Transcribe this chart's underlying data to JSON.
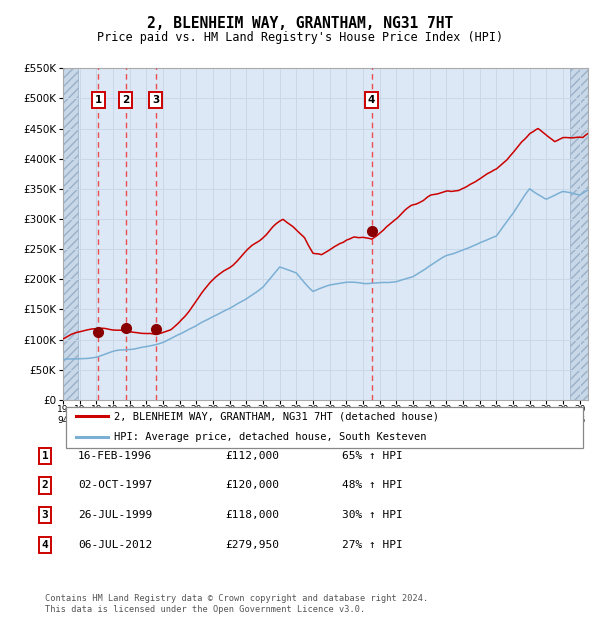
{
  "title": "2, BLENHEIM WAY, GRANTHAM, NG31 7HT",
  "subtitle": "Price paid vs. HM Land Registry's House Price Index (HPI)",
  "sales": [
    {
      "date_num": 1996.12,
      "price": 112000,
      "label": "1"
    },
    {
      "date_num": 1997.75,
      "price": 120000,
      "label": "2"
    },
    {
      "date_num": 1999.57,
      "price": 118000,
      "label": "3"
    },
    {
      "date_num": 2012.51,
      "price": 279950,
      "label": "4"
    }
  ],
  "legend_line1": "2, BLENHEIM WAY, GRANTHAM, NG31 7HT (detached house)",
  "legend_line2": "HPI: Average price, detached house, South Kesteven",
  "table_rows": [
    {
      "num": "1",
      "date": "16-FEB-1996",
      "price": "£112,000",
      "hpi": "65% ↑ HPI"
    },
    {
      "num": "2",
      "date": "02-OCT-1997",
      "price": "£120,000",
      "hpi": "48% ↑ HPI"
    },
    {
      "num": "3",
      "date": "26-JUL-1999",
      "price": "£118,000",
      "hpi": "30% ↑ HPI"
    },
    {
      "num": "4",
      "date": "06-JUL-2012",
      "price": "£279,950",
      "hpi": "27% ↑ HPI"
    }
  ],
  "footnote": "Contains HM Land Registry data © Crown copyright and database right 2024.\nThis data is licensed under the Open Government Licence v3.0.",
  "xmin": 1994.0,
  "xmax": 2025.5,
  "ymin": 0,
  "ymax": 550000,
  "yticks": [
    0,
    50000,
    100000,
    150000,
    200000,
    250000,
    300000,
    350000,
    400000,
    450000,
    500000,
    550000
  ],
  "chart_bg": "#dce8f5",
  "grid_color": "#c8d8e8",
  "red_line_color": "#cc0000",
  "blue_line_color": "#7bafd4",
  "vline_color": "#ee3333",
  "dot_color": "#880000",
  "hatch_bg": "#c8d8e8",
  "hatch_left_end": 1994.92,
  "hatch_right_start": 2024.42
}
